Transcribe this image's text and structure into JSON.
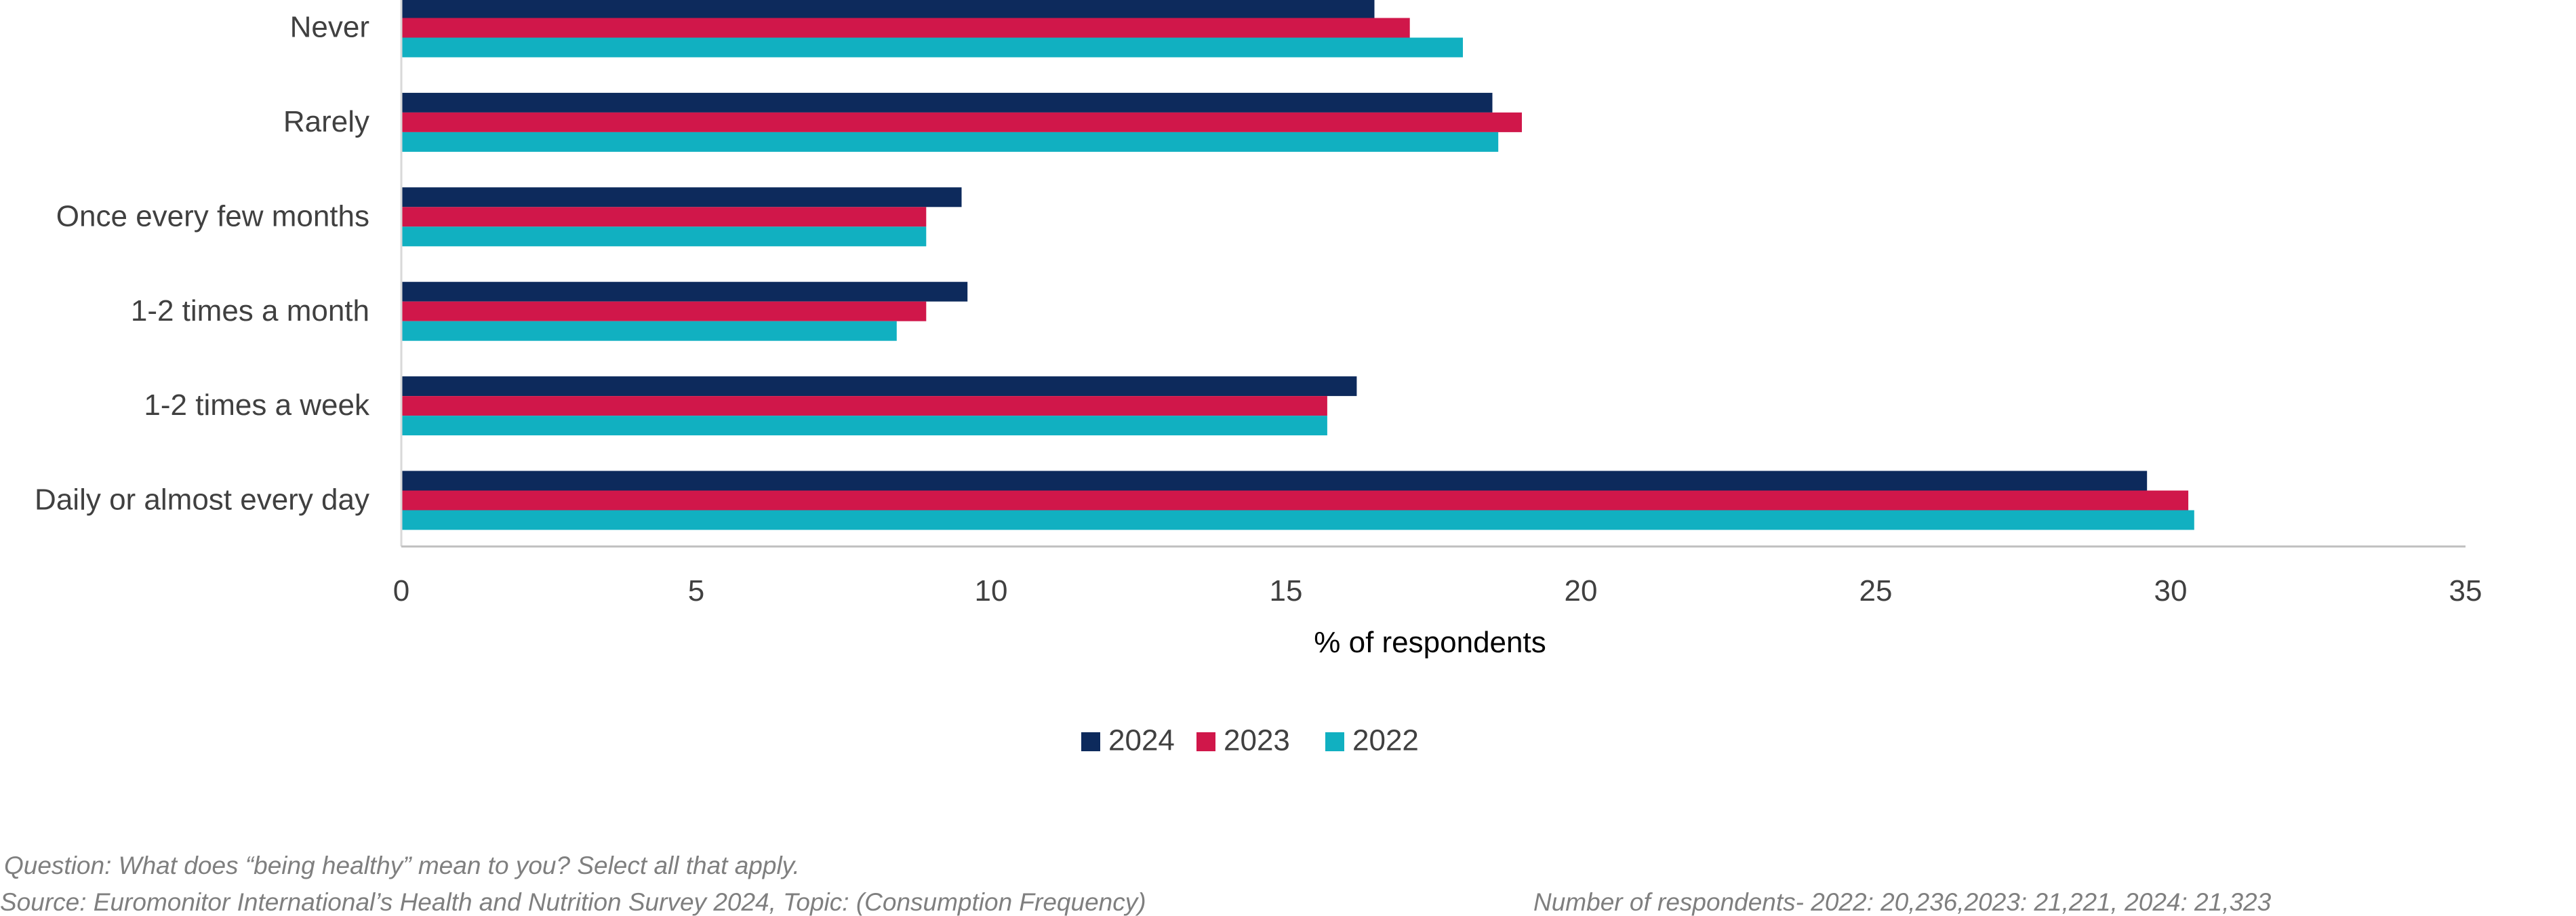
{
  "chart_data": {
    "type": "bar",
    "orientation": "horizontal",
    "categories": [
      "Never",
      "Rarely",
      "Once every few months",
      "1-2 times a month",
      "1-2 times a week",
      "Daily or almost every day"
    ],
    "series": [
      {
        "name": "2024",
        "color": "#0d2a5c",
        "values": [
          16.5,
          18.5,
          9.5,
          9.6,
          16.2,
          29.6
        ]
      },
      {
        "name": "2023",
        "color": "#d0174a",
        "values": [
          17.1,
          19.0,
          8.9,
          8.9,
          15.7,
          30.3
        ]
      },
      {
        "name": "2022",
        "color": "#11b0c1",
        "values": [
          18.0,
          18.6,
          8.9,
          8.4,
          15.7,
          30.4
        ]
      }
    ],
    "xlabel": "% of respondents",
    "ylabel": "",
    "xlim": [
      0,
      35
    ],
    "xticks": [
      "0",
      "5",
      "10",
      "15",
      "20",
      "25",
      "30",
      "35"
    ],
    "grid": false,
    "legend_position": "bottom"
  },
  "notes": {
    "question": "Question: What does “being healthy” mean to you? Select all that apply.",
    "source": "Source: Euromonitor International’s Health and Nutrition Survey 2024, Topic: (Consumption Frequency)",
    "respondents": "Number of respondents-  2022: 20,236,2023: 21,221, 2024: 21,323"
  }
}
